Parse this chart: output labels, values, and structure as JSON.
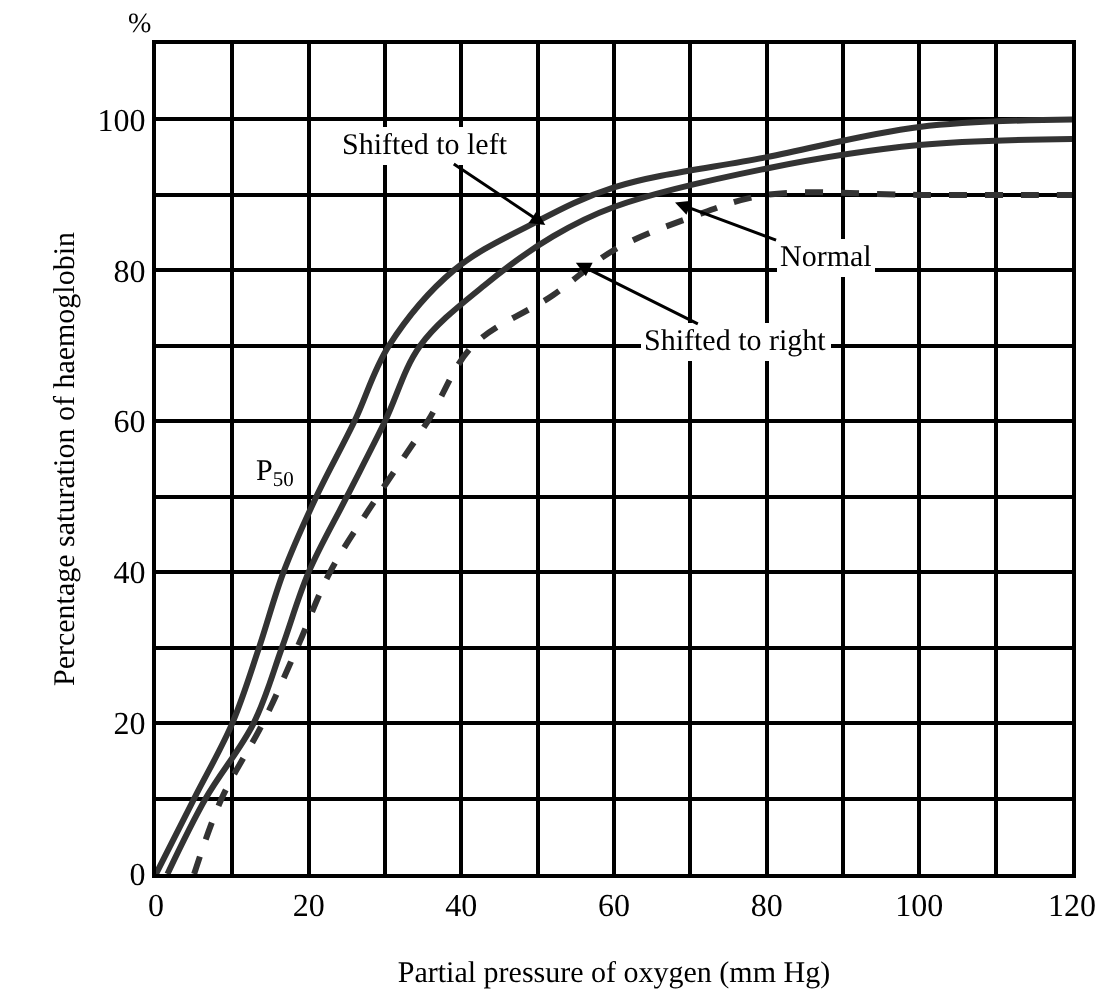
{
  "chart_data": {
    "type": "line",
    "xlabel": "Partial pressure of oxygen (mm Hg)",
    "ylabel": "Percentage saturation of haemoglobin",
    "xlim": [
      0,
      120
    ],
    "ylim": [
      0,
      110
    ],
    "xticks": [
      0,
      {
        "value": 10,
        "label": null
      },
      20,
      {
        "value": 30,
        "label": null
      },
      40,
      {
        "value": 50,
        "label": null
      },
      60,
      {
        "value": 70,
        "label": null
      },
      80,
      {
        "value": 90,
        "label": null
      },
      100,
      {
        "value": 110,
        "label": null
      },
      120
    ],
    "yticks": [
      0,
      {
        "value": 10,
        "label": null
      },
      20,
      {
        "value": 30,
        "label": null
      },
      40,
      {
        "value": 50,
        "label": null
      },
      60,
      {
        "value": 70,
        "label": null
      },
      80,
      {
        "value": 90,
        "label": null
      },
      100
    ],
    "grid": true,
    "marker": "none",
    "series": [
      {
        "color": "#333333",
        "line_style": "solid",
        "x": [
          0,
          5,
          10,
          13.5,
          16.7,
          21,
          26,
          30.5,
          39,
          49,
          60,
          80,
          100,
          120
        ],
        "values": [
          0,
          10,
          20,
          30,
          40,
          50,
          60,
          70,
          80,
          86,
          91,
          95,
          99,
          100
        ]
      },
      {
        "color": "#333333",
        "line_style": "solid",
        "x": [
          1.5,
          6.5,
          12.8,
          16.5,
          20,
          25,
          30,
          34.6,
          43,
          52,
          60,
          80,
          100,
          120
        ],
        "values": [
          0,
          10,
          20,
          30,
          40,
          50,
          60,
          70,
          78,
          84.5,
          88.4,
          93.5,
          96.6,
          97.4
        ]
      },
      {
        "color": "#333333",
        "line_style": "dashed",
        "x": [
          5,
          8.6,
          14,
          18.5,
          22.8,
          29,
          35.6,
          41.5,
          52,
          60,
          70,
          80,
          100,
          120
        ],
        "values": [
          0,
          10,
          20,
          30,
          40,
          50,
          60,
          70,
          76.7,
          82.7,
          87,
          90,
          90,
          90
        ]
      }
    ],
    "annotations": [
      {
        "text": "Shifted to left",
        "x": 51,
        "y": 86
      },
      {
        "text": "Normal",
        "x": 68,
        "y": 89
      },
      {
        "text": "Shifted to right",
        "x": 55,
        "y": 81
      },
      "P$_{50}$",
      "%"
    ]
  }
}
